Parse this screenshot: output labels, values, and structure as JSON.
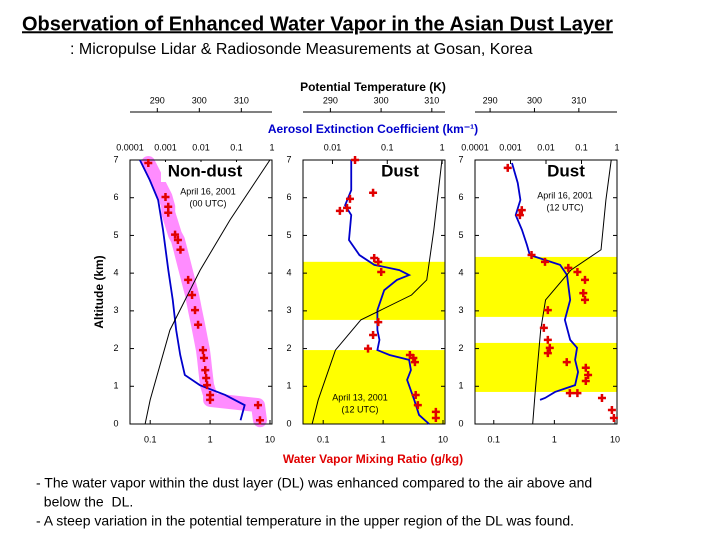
{
  "header": {
    "title": "Observation of Enhanced Water Vapor in the Asian Dust Layer",
    "subtitle": ": Micropulse Lidar & Radiosonde Measurements at Gosan, Korea"
  },
  "figure": {
    "potential_temperature_label": "Potential Temperature (K)",
    "extinction_label": "Aerosol Extinction Coefficient (km⁻¹)",
    "water_vapor_label": "Water Vapor Mixing Ratio (g/kg)",
    "y_label": "Altitude (km)"
  },
  "chart_data": [
    {
      "type": "profile",
      "label": "Non-dust",
      "annotation": [
        "April 16, 2001",
        "(00 UTC)"
      ],
      "ylim": [
        0,
        7
      ],
      "yticks": [
        0,
        1,
        2,
        3,
        4,
        5,
        6,
        7
      ],
      "xlim": [
        0.046,
        10.8
      ],
      "xticks": [
        0.1,
        1,
        10
      ],
      "xlog": true,
      "x2lim": [
        0.0001,
        1
      ],
      "x2ticks": [
        0.0001,
        0.001,
        0.01,
        0.1,
        1
      ],
      "x2log": true,
      "x3lim": [
        283.5,
        317.3
      ],
      "x3ticks": [
        290,
        300,
        310
      ],
      "bands": [],
      "series": [
        {
          "kind": "line",
          "axis": "x2",
          "color": "#0000cc",
          "x": [
            0.00019,
            0.00036,
            0.00062,
            0.00085,
            0.0012,
            0.0016,
            0.002,
            0.0026,
            0.0035,
            0.0093,
            0.048,
            0.17,
            0.13
          ],
          "y": [
            7.0,
            6.47,
            5.94,
            5.15,
            4.08,
            3.29,
            2.49,
            1.83,
            1.3,
            1.03,
            0.77,
            0.5,
            0.1
          ]
        },
        {
          "kind": "line",
          "axis": "x3",
          "color": "#000000",
          "x": [
            287.1,
            288.3,
            293,
            300.2,
            307.3,
            316.8
          ],
          "y": [
            0,
            0.64,
            2.49,
            4.08,
            5.41,
            7
          ]
        },
        {
          "kind": "scatter",
          "axis": "x",
          "color": "#e00000",
          "x": [
            0.093,
            0.18,
            0.2,
            0.2,
            0.26,
            0.29,
            0.32,
            0.43,
            0.5,
            0.56,
            0.63,
            0.76,
            0.79,
            0.83,
            0.86,
            0.89,
            1.0,
            1.0,
            6.3,
            6.8
          ],
          "y": [
            6.92,
            6.02,
            5.76,
            5.6,
            5.02,
            4.88,
            4.62,
            3.82,
            3.42,
            3.02,
            2.63,
            1.96,
            1.75,
            1.43,
            1.22,
            1.03,
            0.77,
            0.64,
            0.5,
            0.1
          ]
        }
      ]
    },
    {
      "type": "profile",
      "label": "Dust",
      "annotation": [
        "April 13, 2001",
        "(12 UTC)"
      ],
      "ylim": [
        0,
        7
      ],
      "yticks": [
        0,
        1,
        2,
        3,
        4,
        5,
        6,
        7
      ],
      "xlim": [
        0.046,
        10.8
      ],
      "xticks": [
        0.1,
        1,
        10
      ],
      "xlog": true,
      "x2lim": [
        0.0029,
        1.13
      ],
      "x2ticks": [
        0.01,
        0.1,
        1
      ],
      "x2log": true,
      "x3lim": [
        284.6,
        312.6
      ],
      "x3ticks": [
        290,
        300,
        310
      ],
      "bands": [
        [
          2.76,
          4.3
        ],
        [
          0,
          1.96
        ]
      ],
      "series": [
        {
          "kind": "line",
          "axis": "x2",
          "color": "#0000cc",
          "x": [
            0.022,
            0.022,
            0.017,
            0.022,
            0.02,
            0.031,
            0.058,
            0.166,
            0.25,
            0.15,
            0.088,
            0.066,
            0.066,
            0.072,
            0.066,
            0.11,
            0.25,
            0.27,
            0.23,
            0.31,
            0.38,
            0.58
          ],
          "y": [
            7.0,
            6.2,
            5.8,
            5.54,
            4.88,
            4.48,
            4.22,
            4.08,
            3.95,
            3.82,
            3.55,
            3.02,
            2.49,
            2.23,
            1.96,
            1.83,
            1.7,
            1.43,
            1.17,
            0.64,
            0.24,
            0
          ]
        },
        {
          "kind": "line",
          "axis": "x3",
          "color": "#000000",
          "x": [
            286.4,
            287.6,
            291,
            296,
            306,
            309,
            310.4,
            312
          ],
          "y": [
            0,
            0.64,
            1.96,
            2.76,
            3.42,
            3.82,
            5.15,
            7
          ]
        },
        {
          "kind": "scatter",
          "axis": "x",
          "color": "#e00000",
          "x": [
            0.34,
            0.68,
            0.28,
            0.25,
            0.19,
            0.71,
            0.83,
            0.93,
            0.83,
            0.68,
            0.56,
            2.8,
            3.2,
            3.4,
            3.5,
            3.8,
            7.6,
            7.6
          ],
          "y": [
            7.0,
            6.13,
            5.97,
            5.73,
            5.65,
            4.4,
            4.3,
            4.03,
            2.7,
            2.36,
            2.0,
            1.83,
            1.75,
            1.64,
            0.77,
            0.5,
            0.32,
            0.16
          ]
        }
      ]
    },
    {
      "type": "profile",
      "label": "Dust",
      "annotation": [
        "April 16, 2001",
        "(12 UTC)"
      ],
      "ylim": [
        0,
        7
      ],
      "yticks": [
        0,
        1,
        2,
        3,
        4,
        5,
        6,
        7
      ],
      "xlim": [
        0.049,
        10.8
      ],
      "xticks": [
        0.1,
        1,
        10
      ],
      "xlog": true,
      "x2lim": [
        0.0001,
        1
      ],
      "x2ticks": [
        0.0001,
        0.001,
        0.01,
        0.1,
        1
      ],
      "x2log": true,
      "x3lim": [
        286.6,
        318.6
      ],
      "x3ticks": [
        290,
        300,
        310
      ],
      "bands": [
        [
          2.84,
          4.43
        ],
        [
          0.85,
          2.15
        ]
      ],
      "series": [
        {
          "kind": "line",
          "axis": "x2",
          "color": "#0000cc",
          "x": [
            0.0011,
            0.0016,
            0.0019,
            0.0014,
            0.0021,
            0.0029,
            0.0035,
            0.025,
            0.039,
            0.048,
            0.034,
            0.048,
            0.075,
            0.066,
            0.08,
            0.066,
            0.018,
            0.0094,
            0.0068
          ],
          "y": [
            6.92,
            6.39,
            5.94,
            5.54,
            5.15,
            4.75,
            4.48,
            4.22,
            3.95,
            3.29,
            2.76,
            2.23,
            2.02,
            1.7,
            1.38,
            1.03,
            0.85,
            0.69,
            0.64
          ]
        },
        {
          "kind": "line",
          "axis": "x3",
          "color": "#000000",
          "x": [
            299.6,
            300.2,
            301.4,
            302.5,
            308.2,
            315,
            316.1,
            317.3
          ],
          "y": [
            0,
            0.9,
            2.49,
            3.29,
            4.08,
            4.62,
            5.94,
            7
          ]
        },
        {
          "kind": "scatter",
          "axis": "x",
          "color": "#e00000",
          "x": [
            0.17,
            0.29,
            0.27,
            0.42,
            0.7,
            1.7,
            2.4,
            3.2,
            3.0,
            3.2,
            0.78,
            0.67,
            0.78,
            0.84,
            0.78,
            1.6,
            3.3,
            3.6,
            3.3,
            1.8,
            2.4,
            6.1,
            8.9,
            9.6
          ],
          "y": [
            6.79,
            5.67,
            5.54,
            4.48,
            4.3,
            4.14,
            4.03,
            3.82,
            3.47,
            3.29,
            3.02,
            2.55,
            2.23,
            2.02,
            1.88,
            1.64,
            1.49,
            1.3,
            1.14,
            0.82,
            0.82,
            0.69,
            0.37,
            0.16
          ]
        }
      ]
    }
  ],
  "notes": [
    "- The water vapor within the dust layer (DL) was enhanced compared to the air above and",
    "  below the  DL.",
    "- A steep variation in the potential temperature in the upper region of the DL was found."
  ]
}
